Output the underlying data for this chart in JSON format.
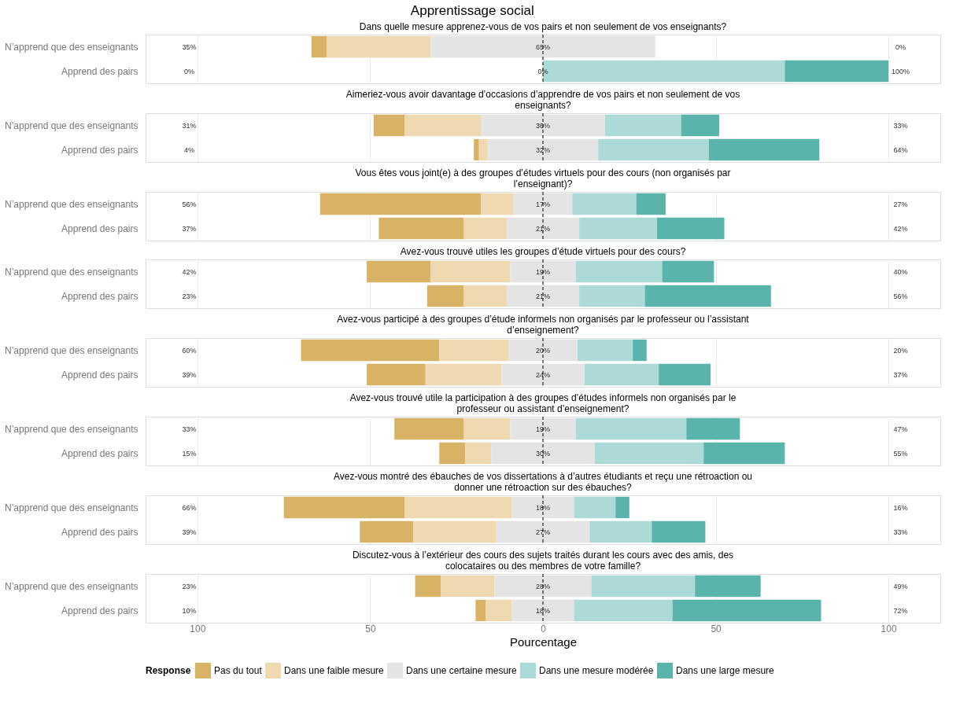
{
  "chart_data": [
    {
      "type": "bar",
      "orientation": "horizontal",
      "title": "Apprentissage social",
      "subtitle": "Dans quelle mesure apprenez-vous de vos pairs et non seulement de vos enseignants?",
      "categories": [
        "N’apprend que des enseignants",
        "Apprend des pairs"
      ],
      "xlim": [
        -115,
        115
      ],
      "tick_labels": "y",
      "grid": "x",
      "legend": "bottom",
      "legend_title": "Response",
      "ref_lines": [
        {
          "axis": "x",
          "value": 0,
          "line_style": "dashed"
        }
      ],
      "series": [
        {
          "name": "Pas du tout",
          "color": "#d8b365",
          "base": [
            -67,
            null
          ],
          "values": [
            4.5,
            null
          ]
        },
        {
          "name": "Dans une faible mesure",
          "color": "#eed9b0",
          "base": [
            -62.5,
            null
          ],
          "values": [
            30,
            null
          ]
        },
        {
          "name": "Dans une certaine mesure",
          "color": "#e4e4e4",
          "base": [
            -32.5,
            null
          ],
          "values": [
            65,
            null
          ]
        },
        {
          "name": "Dans une mesure modérée",
          "color": "#acdad6",
          "base": [
            null,
            0
          ],
          "values": [
            null,
            70
          ]
        },
        {
          "name": "Dans une large mesure",
          "color": "#5ab4ac",
          "base": [
            null,
            70
          ],
          "values": [
            null,
            30
          ]
        }
      ],
      "annotations": [
        "35%",
        "65%",
        "0%",
        "0%",
        "0%",
        "100%"
      ]
    },
    {
      "type": "bar",
      "orientation": "horizontal",
      "title": "Aimeriez-vous avoir davantage d’occasions d’apprendre de vos pairs et non seulement de vos enseignants?",
      "categories": [
        "N’apprend que des enseignants",
        "Apprend des pairs"
      ],
      "xlim": [
        -115,
        115
      ],
      "tick_labels": "y",
      "grid": "x",
      "legend": "bottom",
      "ref_lines": [
        {
          "axis": "x",
          "value": 0,
          "line_style": "dashed"
        }
      ],
      "series": [
        {
          "name": "Pas du tout",
          "color": "#d8b365",
          "base": [
            -49,
            -20
          ],
          "values": [
            9,
            1.5
          ]
        },
        {
          "name": "Dans une faible mesure",
          "color": "#eed9b0",
          "base": [
            -40,
            -18.5
          ],
          "values": [
            22,
            2.5
          ]
        },
        {
          "name": "Dans une certaine mesure",
          "color": "#e4e4e4",
          "base": [
            -18,
            -16
          ],
          "values": [
            36,
            32
          ]
        },
        {
          "name": "Dans une mesure modérée",
          "color": "#acdad6",
          "base": [
            18,
            16
          ],
          "values": [
            22,
            32
          ]
        },
        {
          "name": "Dans une large mesure",
          "color": "#5ab4ac",
          "base": [
            40,
            48
          ],
          "values": [
            11,
            32
          ]
        }
      ],
      "annotations": [
        "31%",
        "36%",
        "33%",
        "4%",
        "32%",
        "64%"
      ]
    },
    {
      "type": "bar",
      "orientation": "horizontal",
      "title": "Vous êtes vous joint(e) à des groupes d’études virtuels pour des cours (non organisés par l’enseignant)?",
      "categories": [
        "N’apprend que des enseignants",
        "Apprend des pairs"
      ],
      "xlim": [
        -115,
        115
      ],
      "tick_labels": "y",
      "grid": "x",
      "legend": "bottom",
      "ref_lines": [
        {
          "axis": "x",
          "value": 0,
          "line_style": "dashed"
        }
      ],
      "series": [
        {
          "name": "Pas du tout",
          "color": "#d8b365",
          "base": [
            -64.5,
            -47.5
          ],
          "values": [
            46.5,
            24.5
          ]
        },
        {
          "name": "Dans une faible mesure",
          "color": "#eed9b0",
          "base": [
            -18,
            -23
          ],
          "values": [
            9.5,
            12.5
          ]
        },
        {
          "name": "Dans une certaine mesure",
          "color": "#e4e4e4",
          "base": [
            -8.5,
            -10.5
          ],
          "values": [
            17,
            21
          ]
        },
        {
          "name": "Dans une mesure modérée",
          "color": "#acdad6",
          "base": [
            8.5,
            10.5
          ],
          "values": [
            18.5,
            22.5
          ]
        },
        {
          "name": "Dans une large mesure",
          "color": "#5ab4ac",
          "base": [
            27,
            33
          ],
          "values": [
            8.5,
            19.5
          ]
        }
      ],
      "annotations": [
        "56%",
        "17%",
        "27%",
        "37%",
        "21%",
        "42%"
      ]
    },
    {
      "type": "bar",
      "orientation": "horizontal",
      "title": "Avez-vous trouvé utiles les groupes d’étude virtuels pour des cours?",
      "categories": [
        "N’apprend que des enseignants",
        "Apprend des pairs"
      ],
      "xlim": [
        -115,
        115
      ],
      "tick_labels": "y",
      "grid": "x",
      "legend": "bottom",
      "ref_lines": [
        {
          "axis": "x",
          "value": 0,
          "line_style": "dashed"
        }
      ],
      "series": [
        {
          "name": "Pas du tout",
          "color": "#d8b365",
          "base": [
            -51,
            -33.5
          ],
          "values": [
            18.5,
            10.5
          ]
        },
        {
          "name": "Dans une faible mesure",
          "color": "#eed9b0",
          "base": [
            -32.5,
            -23
          ],
          "values": [
            23,
            12.5
          ]
        },
        {
          "name": "Dans une certaine mesure",
          "color": "#e4e4e4",
          "base": [
            -9.5,
            -10.5
          ],
          "values": [
            19,
            21
          ]
        },
        {
          "name": "Dans une mesure modérée",
          "color": "#acdad6",
          "base": [
            9.5,
            10.5
          ],
          "values": [
            25,
            19
          ]
        },
        {
          "name": "Dans une large mesure",
          "color": "#5ab4ac",
          "base": [
            34.5,
            29.5
          ],
          "values": [
            15,
            36.5
          ]
        }
      ],
      "annotations": [
        "42%",
        "19%",
        "40%",
        "23%",
        "21%",
        "56%"
      ]
    },
    {
      "type": "bar",
      "orientation": "horizontal",
      "title": "Avez-vous participé à des groupes d’étude informels non organisés par le professeur ou l’assistant d’enseignement?",
      "categories": [
        "N’apprend que des enseignants",
        "Apprend des pairs"
      ],
      "xlim": [
        -115,
        115
      ],
      "tick_labels": "y",
      "grid": "x",
      "legend": "bottom",
      "ref_lines": [
        {
          "axis": "x",
          "value": 0,
          "line_style": "dashed"
        }
      ],
      "series": [
        {
          "name": "Pas du tout",
          "color": "#d8b365",
          "base": [
            -70,
            -51
          ],
          "values": [
            40,
            17
          ]
        },
        {
          "name": "Dans une faible mesure",
          "color": "#eed9b0",
          "base": [
            -30,
            -34
          ],
          "values": [
            20,
            22
          ]
        },
        {
          "name": "Dans une certaine mesure",
          "color": "#e4e4e4",
          "base": [
            -10,
            -12
          ],
          "values": [
            20,
            24
          ]
        },
        {
          "name": "Dans une mesure modérée",
          "color": "#acdad6",
          "base": [
            10,
            12
          ],
          "values": [
            16,
            21.5
          ]
        },
        {
          "name": "Dans une large mesure",
          "color": "#5ab4ac",
          "base": [
            26,
            33.5
          ],
          "values": [
            4,
            15
          ]
        }
      ],
      "annotations": [
        "60%",
        "20%",
        "20%",
        "39%",
        "24%",
        "37%"
      ]
    },
    {
      "type": "bar",
      "orientation": "horizontal",
      "title": "Avez-vous trouvé utile la participation à des groupes d’études informels non organisés par le professeur ou assistant d’enseignement?",
      "categories": [
        "N’apprend que des enseignants",
        "Apprend des pairs"
      ],
      "xlim": [
        -115,
        115
      ],
      "tick_labels": "y",
      "grid": "x",
      "legend": "bottom",
      "ref_lines": [
        {
          "axis": "x",
          "value": 0,
          "line_style": "dashed"
        }
      ],
      "series": [
        {
          "name": "Pas du tout",
          "color": "#d8b365",
          "base": [
            -43,
            -30
          ],
          "values": [
            20,
            7.5
          ]
        },
        {
          "name": "Dans une faible mesure",
          "color": "#eed9b0",
          "base": [
            -23,
            -22.5
          ],
          "values": [
            13.5,
            7.5
          ]
        },
        {
          "name": "Dans une certaine mesure",
          "color": "#e4e4e4",
          "base": [
            -9.5,
            -15
          ],
          "values": [
            19,
            30
          ]
        },
        {
          "name": "Dans une mesure modérée",
          "color": "#acdad6",
          "base": [
            9.5,
            15
          ],
          "values": [
            32,
            31.5
          ]
        },
        {
          "name": "Dans une large mesure",
          "color": "#5ab4ac",
          "base": [
            41.5,
            46.5
          ],
          "values": [
            15.5,
            23.5
          ]
        }
      ],
      "annotations": [
        "33%",
        "19%",
        "47%",
        "15%",
        "30%",
        "55%"
      ]
    },
    {
      "type": "bar",
      "orientation": "horizontal",
      "title": "Avez-vous montré des ébauches de vos dissertations à d’autres étudiants et reçu une rétroaction ou donner une rétroaction sur des ébauches?",
      "categories": [
        "N’apprend que des enseignants",
        "Apprend des pairs"
      ],
      "xlim": [
        -115,
        115
      ],
      "tick_labels": "y",
      "grid": "x",
      "legend": "bottom",
      "ref_lines": [
        {
          "axis": "x",
          "value": 0,
          "line_style": "dashed"
        }
      ],
      "series": [
        {
          "name": "Pas du tout",
          "color": "#d8b365",
          "base": [
            -75,
            -53
          ],
          "values": [
            35,
            15.5
          ]
        },
        {
          "name": "Dans une faible mesure",
          "color": "#eed9b0",
          "base": [
            -40,
            -37.5
          ],
          "values": [
            31,
            24
          ]
        },
        {
          "name": "Dans une certaine mesure",
          "color": "#e4e4e4",
          "base": [
            -9,
            -13.5
          ],
          "values": [
            18,
            27
          ]
        },
        {
          "name": "Dans une mesure modérée",
          "color": "#acdad6",
          "base": [
            9,
            13.5
          ],
          "values": [
            12,
            18
          ]
        },
        {
          "name": "Dans une large mesure",
          "color": "#5ab4ac",
          "base": [
            21,
            31.5
          ],
          "values": [
            4,
            15.5
          ]
        }
      ],
      "annotations": [
        "66%",
        "18%",
        "16%",
        "39%",
        "27%",
        "33%"
      ]
    },
    {
      "type": "bar",
      "orientation": "horizontal",
      "title": "Discutez-vous à l’extérieur des cours des sujets traités durant les cours avec des amis, des colocataires ou des membres de votre famille?",
      "categories": [
        "N’apprend que des enseignants",
        "Apprend des pairs"
      ],
      "xlim": [
        -115,
        115
      ],
      "xticks": [
        {
          "value": -100,
          "label": "100"
        },
        {
          "value": -50,
          "label": "50"
        },
        0,
        50,
        100
      ],
      "xlabel": "Pourcentage",
      "grid": "x",
      "legend": "bottom",
      "ref_lines": [
        {
          "axis": "x",
          "value": 0,
          "line_style": "dashed"
        }
      ],
      "series": [
        {
          "name": "Pas du tout",
          "color": "#d8b365",
          "base": [
            -37,
            -19.5
          ],
          "values": [
            7.5,
            3
          ]
        },
        {
          "name": "Dans une faible mesure",
          "color": "#eed9b0",
          "base": [
            -29.5,
            -16.5
          ],
          "values": [
            15.5,
            7.5
          ]
        },
        {
          "name": "Dans une certaine mesure",
          "color": "#e4e4e4",
          "base": [
            -14,
            -9
          ],
          "values": [
            28,
            18
          ]
        },
        {
          "name": "Dans une mesure modérée",
          "color": "#acdad6",
          "base": [
            14,
            9
          ],
          "values": [
            30,
            28.5
          ]
        },
        {
          "name": "Dans une large mesure",
          "color": "#5ab4ac",
          "base": [
            44,
            37.5
          ],
          "values": [
            19,
            43
          ]
        }
      ],
      "annotations": [
        "23%",
        "28%",
        "49%",
        "10%",
        "18%",
        "72%"
      ]
    }
  ]
}
